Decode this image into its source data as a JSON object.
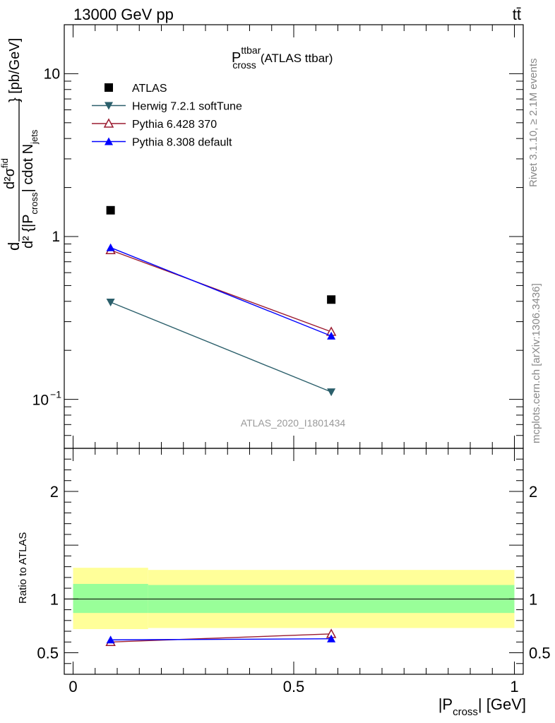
{
  "header": {
    "energy_label": "13000 GeV pp",
    "process_label": "tt̄"
  },
  "side_labels": {
    "rivet": "Rivet 3.1.10, ≥ 2.1M events",
    "mcplots": "mcplots.cern.ch [arXiv:1306.3436]"
  },
  "chart_data": [
    {
      "type": "scatter",
      "title_main": "P",
      "title_sup": "ttbar",
      "title_sub": "cross",
      "title_suffix": "(ATLAS ttbar)",
      "analysis_id": "ATLAS_2020_I1801434",
      "yscale": "log",
      "ylim": [
        0.05,
        20
      ],
      "xlim": [
        -0.02,
        1.02
      ],
      "y_ticks": [
        {
          "value": 10,
          "label": "10"
        },
        {
          "value": 1,
          "label": "1"
        },
        {
          "value": 0.1,
          "label_base": "10",
          "label_exp": "−1"
        }
      ],
      "ylabel": {
        "prefix": "d",
        "numerator": "d²σ",
        "numerator_sup": "fid",
        "denominator_main": "d² {|P",
        "denominator_sub": "cross",
        "denominator_mid": "| cdot N",
        "denominator_sub2": "jets",
        "suffix": "} [pb/GeV]"
      },
      "legend_position": "top-left",
      "series": [
        {
          "name": "ATLAS",
          "color": "#000000",
          "marker": "square",
          "x": [
            0.085,
            0.585
          ],
          "y": [
            1.45,
            0.41
          ]
        },
        {
          "name": "Herwig 7.2.1 softTune",
          "color": "#2b5f6b",
          "marker": "triangle-down",
          "x": [
            0.085,
            0.585
          ],
          "y": [
            0.395,
            0.111
          ]
        },
        {
          "name": "Pythia 6.428 370",
          "color": "#9b1b30",
          "marker": "triangle-up-open",
          "x": [
            0.085,
            0.585
          ],
          "y": [
            0.825,
            0.26
          ]
        },
        {
          "name": "Pythia 8.308 default",
          "color": "#0000ff",
          "marker": "triangle-up",
          "x": [
            0.085,
            0.585
          ],
          "y": [
            0.855,
            0.245
          ]
        }
      ]
    },
    {
      "type": "line",
      "ylabel": "Ratio to ATLAS",
      "xlabel_main": "|P",
      "xlabel_sub": "cross",
      "xlabel_suffix": "| [GeV]",
      "ylim": [
        0.3,
        2.4
      ],
      "xlim": [
        -0.02,
        1.02
      ],
      "y_ticks": [
        {
          "value": 2,
          "label": "2"
        },
        {
          "value": 1,
          "label": "1"
        },
        {
          "value": 0.5,
          "label": "0.5"
        }
      ],
      "x_ticks": [
        {
          "value": 0,
          "label": "0"
        },
        {
          "value": 0.5,
          "label": "0.5"
        },
        {
          "value": 1,
          "label": "1"
        }
      ],
      "bands": [
        {
          "name": "stat-syst",
          "color": "#ffff99",
          "bins": [
            {
              "x0": 0,
              "x1": 0.17,
              "low": 0.72,
              "high": 1.29
            },
            {
              "x0": 0.17,
              "x1": 1,
              "low": 0.73,
              "high": 1.27
            }
          ]
        },
        {
          "name": "stat",
          "color": "#99ff99",
          "bins": [
            {
              "x0": 0,
              "x1": 0.17,
              "low": 0.87,
              "high": 1.14
            },
            {
              "x0": 0.17,
              "x1": 1,
              "low": 0.87,
              "high": 1.13
            }
          ]
        }
      ],
      "reference_line": 1,
      "series": [
        {
          "name": "Pythia 6.428 370",
          "color": "#9b1b30",
          "marker": "triangle-up-open",
          "x": [
            0.085,
            0.585
          ],
          "y": [
            0.6,
            0.675
          ],
          "err": [
            0,
            0
          ]
        },
        {
          "name": "Pythia 8.308 default",
          "color": "#0000ff",
          "marker": "triangle-up",
          "x": [
            0.085,
            0.585
          ],
          "y": [
            0.62,
            0.63
          ],
          "err": [
            0.03,
            0.02
          ]
        }
      ]
    }
  ]
}
